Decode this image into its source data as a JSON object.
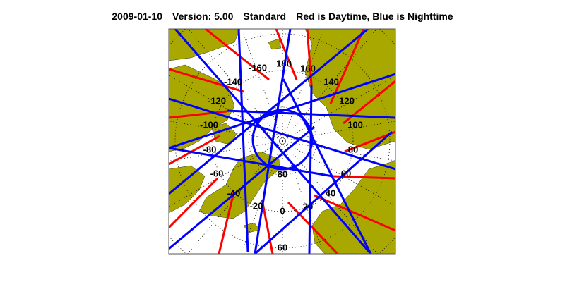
{
  "title": {
    "date": "2009-01-10",
    "version": "Version: 5.00",
    "mode": "Standard",
    "legend_note": "Red is Daytime, Blue is Nighttime"
  },
  "map": {
    "projection": "north polar stereographic",
    "colors": {
      "land": "#a8a800",
      "ocean": "#ffffff",
      "daytime": "#ff0000",
      "nighttime": "#0000ff",
      "grid": "#000000"
    },
    "longitude_labels": [
      "180",
      "160",
      "140",
      "120",
      "100",
      "80",
      "60",
      "40",
      "20",
      "0",
      "-20",
      "-40",
      "-60",
      "-80",
      "-100",
      "-120",
      "-140",
      "-160"
    ],
    "latitude_labels": [
      "80",
      "60"
    ]
  }
}
